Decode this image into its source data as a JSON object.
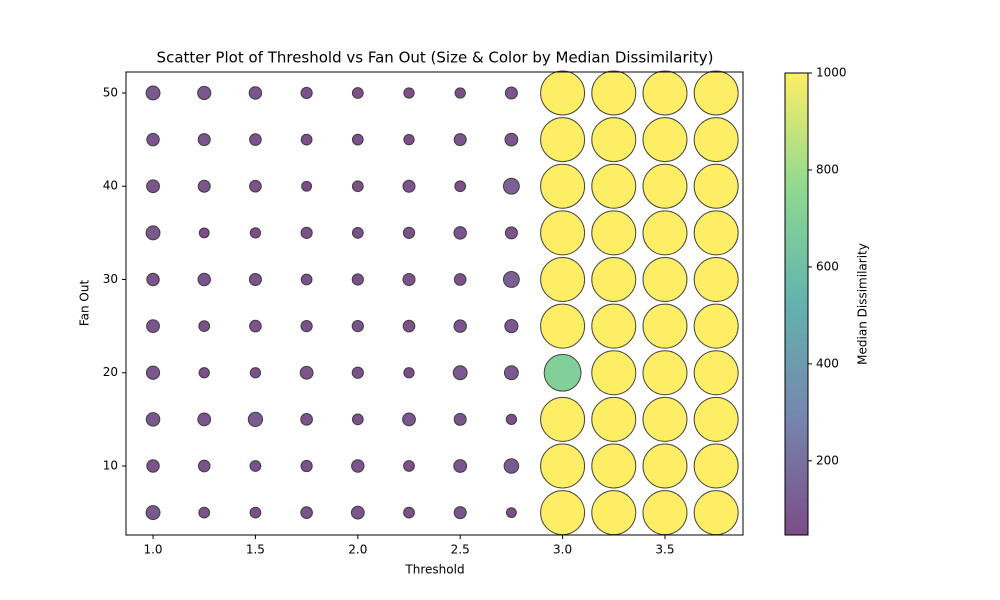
{
  "chart_data": {
    "type": "scatter",
    "title": "Scatter Plot of Threshold vs Fan Out (Size & Color by Median Dissimilarity)",
    "x_label": "Threshold",
    "y_label": "Fan Out",
    "colorbar_label": "Median Dissimilarity",
    "colormap": "viridis",
    "x": [
      1,
      1,
      1,
      1,
      1,
      1,
      1,
      1,
      1,
      1,
      1.25,
      1.25,
      1.25,
      1.25,
      1.25,
      1.25,
      1.25,
      1.25,
      1.25,
      1.25,
      1.5,
      1.5,
      1.5,
      1.5,
      1.5,
      1.5,
      1.5,
      1.5,
      1.5,
      1.5,
      1.75,
      1.75,
      1.75,
      1.75,
      1.75,
      1.75,
      1.75,
      1.75,
      1.75,
      1.75,
      2,
      2,
      2,
      2,
      2,
      2,
      2,
      2,
      2,
      2,
      2.25,
      2.25,
      2.25,
      2.25,
      2.25,
      2.25,
      2.25,
      2.25,
      2.25,
      2.25,
      2.5,
      2.5,
      2.5,
      2.5,
      2.5,
      2.5,
      2.5,
      2.5,
      2.5,
      2.5,
      2.75,
      2.75,
      2.75,
      2.75,
      2.75,
      2.75,
      2.75,
      2.75,
      2.75,
      2.75,
      3,
      3,
      3,
      3,
      3,
      3,
      3,
      3,
      3,
      3,
      3.25,
      3.25,
      3.25,
      3.25,
      3.25,
      3.25,
      3.25,
      3.25,
      3.25,
      3.25,
      3.5,
      3.5,
      3.5,
      3.5,
      3.5,
      3.5,
      3.5,
      3.5,
      3.5,
      3.5,
      3.75,
      3.75,
      3.75,
      3.75,
      3.75,
      3.75,
      3.75,
      3.75,
      3.75,
      3.75
    ],
    "values": [
      5,
      10,
      15,
      20,
      25,
      30,
      35,
      40,
      45,
      50,
      5,
      10,
      15,
      20,
      25,
      30,
      35,
      40,
      45,
      50,
      5,
      10,
      15,
      20,
      25,
      30,
      35,
      40,
      45,
      50,
      5,
      10,
      15,
      20,
      25,
      30,
      35,
      40,
      45,
      50,
      5,
      10,
      15,
      20,
      25,
      30,
      35,
      40,
      45,
      50,
      5,
      10,
      15,
      20,
      25,
      30,
      35,
      40,
      45,
      50,
      5,
      10,
      15,
      20,
      25,
      30,
      35,
      40,
      45,
      50,
      5,
      10,
      15,
      20,
      25,
      30,
      35,
      40,
      45,
      50,
      5,
      10,
      15,
      20,
      25,
      30,
      35,
      40,
      45,
      50,
      5,
      10,
      15,
      20,
      25,
      30,
      35,
      40,
      45,
      50,
      5,
      10,
      15,
      20,
      25,
      30,
      35,
      40,
      45,
      50,
      5,
      10,
      15,
      20,
      25,
      30,
      35,
      40,
      45,
      50
    ],
    "sizes": [
      100,
      80,
      95,
      90,
      85,
      80,
      100,
      85,
      80,
      100,
      60,
      70,
      85,
      55,
      60,
      80,
      50,
      75,
      75,
      90,
      60,
      60,
      105,
      55,
      70,
      75,
      55,
      70,
      70,
      80,
      70,
      65,
      70,
      85,
      65,
      60,
      65,
      50,
      60,
      65,
      85,
      80,
      60,
      65,
      65,
      65,
      60,
      60,
      60,
      60,
      60,
      60,
      85,
      55,
      70,
      75,
      65,
      75,
      55,
      55,
      75,
      85,
      75,
      100,
      80,
      70,
      80,
      60,
      75,
      55,
      50,
      110,
      55,
      100,
      90,
      130,
      75,
      130,
      85,
      75,
      1000,
      1000,
      1000,
      700,
      1000,
      1000,
      1000,
      1000,
      1000,
      1000,
      1000,
      1000,
      1000,
      1000,
      1000,
      1000,
      1000,
      1000,
      1000,
      1000,
      1000,
      1000,
      1000,
      1000,
      1000,
      1000,
      1000,
      1000,
      1000,
      1000,
      1000,
      1000,
      1000,
      1000,
      1000,
      1000,
      1000,
      1000,
      1000,
      1000
    ],
    "xlim": [
      0.868,
      3.881
    ],
    "ylim": [
      2.6,
      52.25
    ],
    "xticks": [
      {
        "value": 1,
        "label": "1.0"
      },
      {
        "value": 1.5,
        "label": "1.5"
      },
      {
        "value": 2,
        "label": "2.0"
      },
      {
        "value": 2.5,
        "label": "2.5"
      },
      {
        "value": 3,
        "label": "3.0"
      },
      {
        "value": 3.5,
        "label": "3.5"
      }
    ],
    "yticks": [
      10,
      20,
      30,
      40,
      50
    ],
    "colorbar_lim": [
      47,
      1000
    ],
    "colorbar_ticks": [
      200,
      400,
      600,
      800,
      1000
    ]
  }
}
